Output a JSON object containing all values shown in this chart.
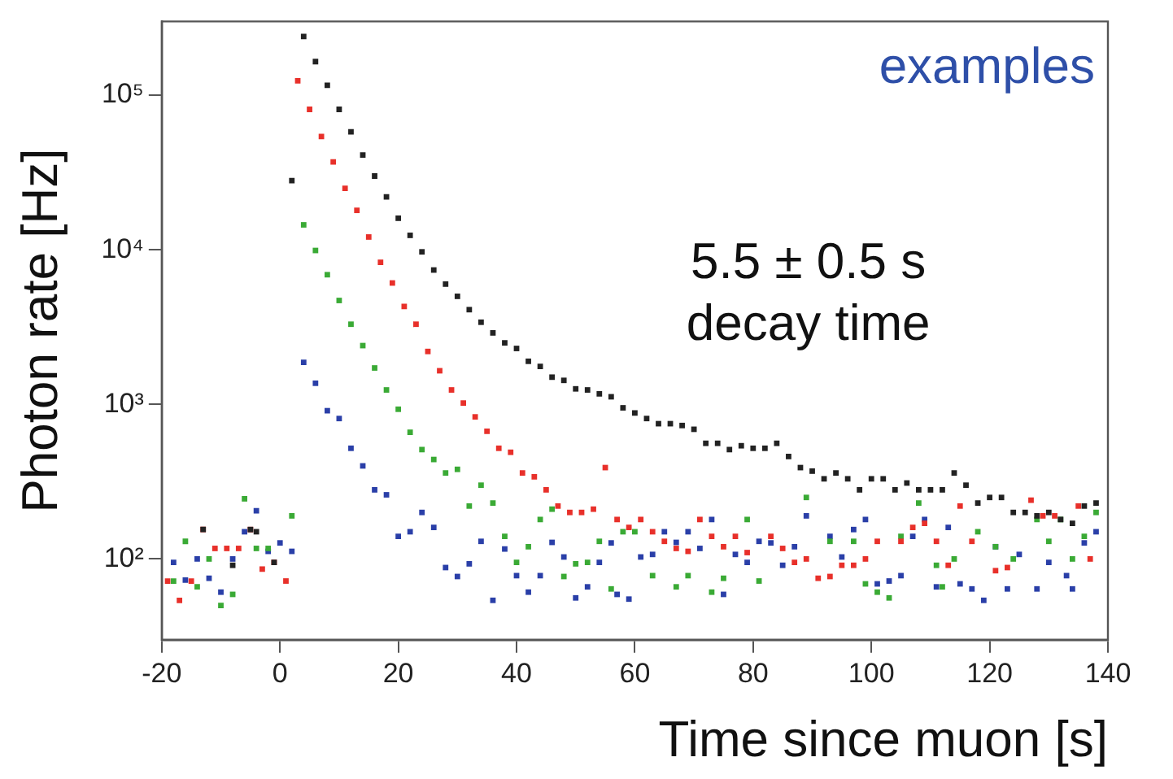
{
  "chart_data": {
    "type": "scatter",
    "xlabel": "Time since muon [s]",
    "ylabel": "Photon rate [Hz]",
    "annotations": [
      "5.5 ± 0.5 s decay time",
      "examples"
    ],
    "log": "y",
    "grid": false,
    "legend": false,
    "marker": "square",
    "xlim": [
      -20,
      140
    ],
    "xticks": [
      -20,
      0,
      20,
      40,
      60,
      80,
      100,
      120,
      140
    ],
    "ylim": [
      30,
      300000
    ],
    "yticks": [
      {
        "value": 100,
        "label": "10²"
      },
      {
        "value": 1000,
        "label": "10³"
      },
      {
        "value": 10000,
        "label": "10⁴"
      },
      {
        "value": 100000,
        "label": "10⁵"
      }
    ],
    "series": [
      {
        "color": "#222222",
        "x": [
          -13,
          -8,
          -5,
          -4,
          -1,
          2,
          4,
          6,
          8,
          10,
          12,
          14,
          16,
          18,
          20,
          22,
          24,
          26,
          28,
          30,
          32,
          34,
          36,
          38,
          40,
          42,
          44,
          46,
          48,
          50,
          52,
          54,
          56,
          58,
          60,
          62,
          64,
          66,
          68,
          70,
          72,
          74,
          76,
          78,
          80,
          82,
          84,
          86,
          88,
          90,
          92,
          94,
          96,
          98,
          100,
          102,
          104,
          106,
          108,
          110,
          112,
          114,
          116,
          118,
          120,
          122,
          124,
          126,
          128,
          130,
          132,
          134,
          136,
          138
        ],
        "values": [
          155,
          91,
          155,
          150,
          95,
          28000,
          240000,
          165000,
          116000,
          81000,
          58000,
          41000,
          30000,
          22000,
          16000,
          12400,
          9700,
          7400,
          6000,
          5000,
          4100,
          3400,
          2900,
          2500,
          2300,
          1900,
          1760,
          1500,
          1430,
          1260,
          1240,
          1170,
          1120,
          950,
          880,
          810,
          750,
          750,
          730,
          690,
          560,
          560,
          510,
          540,
          520,
          520,
          560,
          460,
          390,
          370,
          330,
          360,
          330,
          280,
          330,
          330,
          280,
          310,
          280,
          280,
          280,
          360,
          300,
          230,
          250,
          250,
          200,
          200,
          190,
          200,
          180,
          170,
          220,
          230
        ]
      },
      {
        "color": "#e8302a",
        "x": [
          -19,
          -17,
          -15,
          -13,
          -11,
          -9,
          -7,
          -5,
          -3,
          -1,
          1,
          3,
          5,
          7,
          9,
          11,
          13,
          15,
          17,
          19,
          21,
          23,
          25,
          27,
          29,
          31,
          33,
          35,
          37,
          39,
          41,
          43,
          45,
          47,
          49,
          51,
          53,
          55,
          57,
          59,
          61,
          63,
          65,
          67,
          69,
          71,
          73,
          75,
          77,
          79,
          83,
          85,
          87,
          89,
          91,
          93,
          95,
          97,
          99,
          101,
          105,
          107,
          109,
          111,
          113,
          115,
          117,
          121,
          123,
          127,
          129,
          131,
          135,
          137
        ],
        "values": [
          72,
          54,
          72,
          155,
          117,
          117,
          117,
          155,
          86,
          95,
          72,
          124000,
          81000,
          54000,
          37000,
          25000,
          18000,
          12100,
          8300,
          6100,
          4300,
          3300,
          2200,
          1650,
          1240,
          1020,
          830,
          670,
          520,
          490,
          360,
          340,
          280,
          220,
          200,
          200,
          210,
          390,
          180,
          160,
          180,
          150,
          130,
          117,
          112,
          180,
          140,
          120,
          140,
          110,
          140,
          117,
          95,
          100,
          75,
          77,
          91,
          91,
          100,
          130,
          130,
          160,
          170,
          130,
          91,
          220,
          130,
          84,
          88,
          240,
          190,
          190,
          220,
          100
        ]
      },
      {
        "color": "#3aaa35",
        "x": [
          -18,
          -16,
          -14,
          -12,
          -10,
          -8,
          -6,
          -4,
          -2,
          2,
          4,
          6,
          8,
          10,
          12,
          14,
          16,
          18,
          20,
          22,
          24,
          26,
          28,
          30,
          32,
          34,
          36,
          38,
          40,
          42,
          44,
          46,
          48,
          50,
          52,
          54,
          56,
          58,
          60,
          63,
          67,
          69,
          73,
          75,
          79,
          81,
          89,
          93,
          97,
          99,
          101,
          103,
          105,
          108,
          111,
          112,
          114,
          118,
          121,
          124,
          128,
          130,
          132,
          134,
          136,
          138
        ],
        "values": [
          72,
          130,
          66,
          100,
          50,
          59,
          245,
          117,
          117,
          190,
          14500,
          9900,
          6900,
          4700,
          3300,
          2400,
          1720,
          1240,
          930,
          660,
          510,
          440,
          360,
          380,
          220,
          300,
          230,
          140,
          95,
          120,
          180,
          210,
          77,
          93,
          95,
          130,
          64,
          150,
          150,
          78,
          66,
          78,
          61,
          75,
          180,
          72,
          250,
          130,
          130,
          69,
          61,
          56,
          140,
          230,
          91,
          66,
          100,
          150,
          120,
          100,
          180,
          130,
          180,
          100,
          140,
          200
        ]
      },
      {
        "color": "#2a3fa8",
        "x": [
          -18,
          -16,
          -14,
          -12,
          -10,
          -8,
          -6,
          -4,
          -2,
          0,
          2,
          4,
          6,
          8,
          10,
          12,
          14,
          16,
          18,
          20,
          22,
          24,
          26,
          28,
          30,
          32,
          34,
          36,
          38,
          40,
          42,
          44,
          46,
          48,
          50,
          52,
          54,
          56,
          57,
          59,
          61,
          63,
          65,
          67,
          69,
          71,
          73,
          75,
          77,
          79,
          81,
          83,
          85,
          87,
          89,
          93,
          95,
          97,
          99,
          101,
          103,
          105,
          107,
          109,
          111,
          113,
          115,
          117,
          119,
          121,
          123,
          125,
          128,
          130,
          133,
          134,
          136,
          138
        ],
        "values": [
          95,
          73,
          100,
          75,
          61,
          100,
          150,
          205,
          112,
          127,
          112,
          1870,
          1370,
          910,
          810,
          520,
          400,
          280,
          260,
          140,
          150,
          200,
          160,
          88,
          77,
          93,
          130,
          54,
          116,
          78,
          61,
          78,
          128,
          103,
          56,
          66,
          95,
          127,
          59,
          55,
          103,
          107,
          150,
          128,
          150,
          117,
          180,
          59,
          107,
          95,
          130,
          127,
          91,
          120,
          190,
          140,
          103,
          155,
          180,
          69,
          72,
          78,
          140,
          180,
          66,
          160,
          69,
          64,
          54,
          120,
          64,
          107,
          64,
          95,
          78,
          64,
          127,
          150
        ]
      }
    ]
  }
}
